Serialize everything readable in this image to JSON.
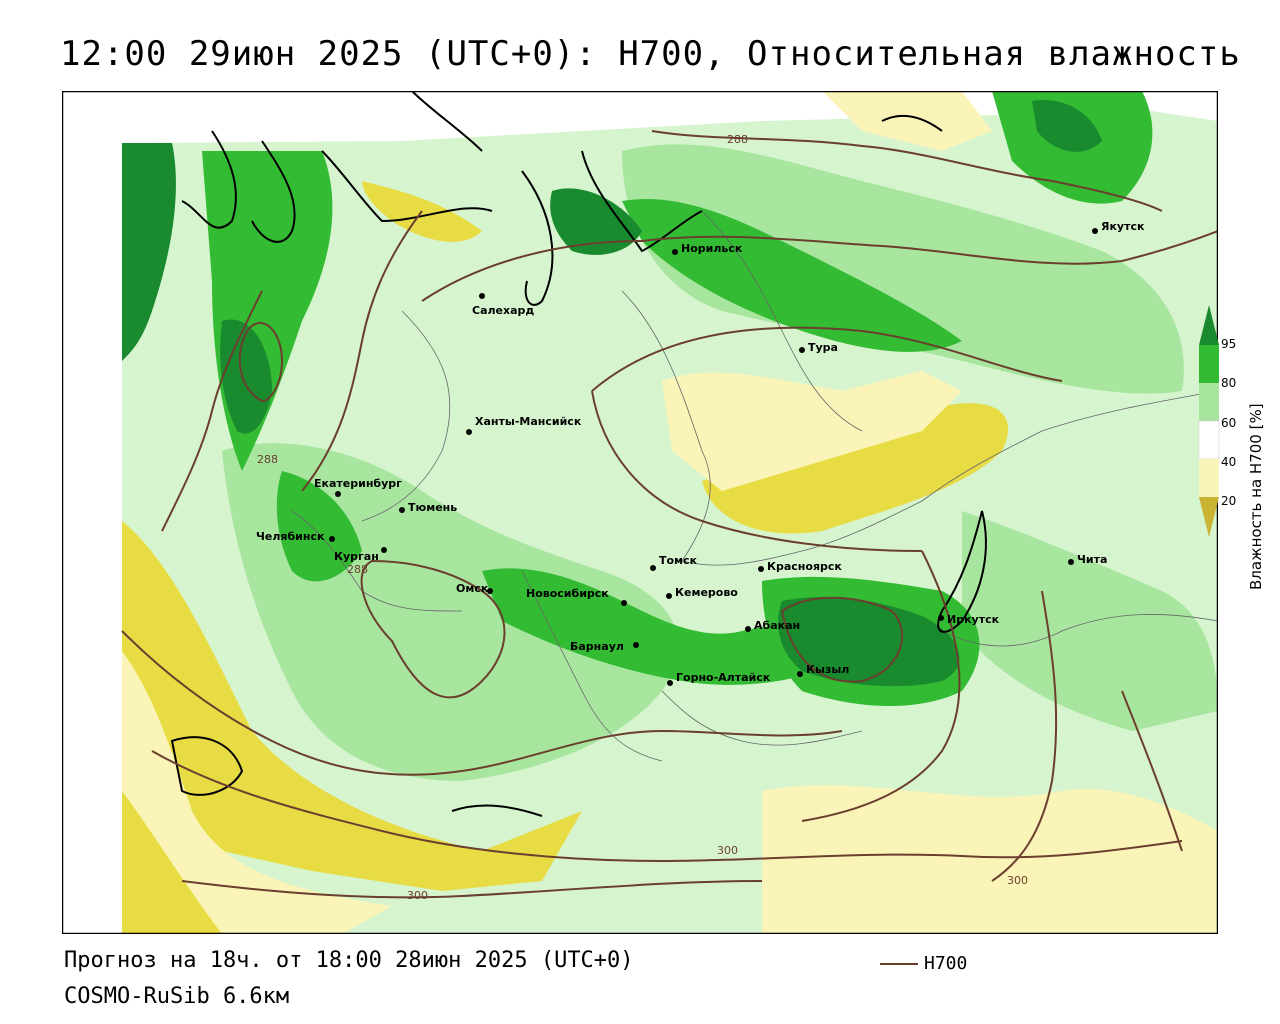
{
  "title": "12:00 29июн 2025 (UTC+0): H700, Относительная влажность",
  "footer": {
    "forecast": "Прогноз на 18ч. от 18:00 28июн 2025 (UTC+0)",
    "model": "COSMO-RuSib 6.6км",
    "legend_label": "H700"
  },
  "colorbar": {
    "title": "Влажность на H700 [%]",
    "ticks": [
      "95",
      "80",
      "60",
      "40",
      "20"
    ],
    "colors": {
      "dark_green": "#1a8a2e",
      "green": "#33bb33",
      "light_green": "#a8e6a0",
      "pale_green": "#d6f5cf",
      "pale_yellow": "#fbf4b8",
      "yellow": "#e8dc45",
      "olive": "#c8b432"
    }
  },
  "isolines": {
    "color": "#6b3f2e",
    "labels": [
      "288",
      "288",
      "288",
      "300",
      "300",
      "300"
    ]
  },
  "cities": [
    {
      "name": "Якутск"
    },
    {
      "name": "Норильск"
    },
    {
      "name": "Салехард"
    },
    {
      "name": "Тура"
    },
    {
      "name": "Ханты-Мансийск"
    },
    {
      "name": "Екатеринбург"
    },
    {
      "name": "Тюмень"
    },
    {
      "name": "Челябинск"
    },
    {
      "name": "Курган"
    },
    {
      "name": "Омск"
    },
    {
      "name": "Новосибирск"
    },
    {
      "name": "Томск"
    },
    {
      "name": "Кемерово"
    },
    {
      "name": "Красноярск"
    },
    {
      "name": "Абакан"
    },
    {
      "name": "Барнаул"
    },
    {
      "name": "Горно-Алтайск"
    },
    {
      "name": "Кызыл"
    },
    {
      "name": "Иркутск"
    },
    {
      "name": "Чита"
    }
  ]
}
